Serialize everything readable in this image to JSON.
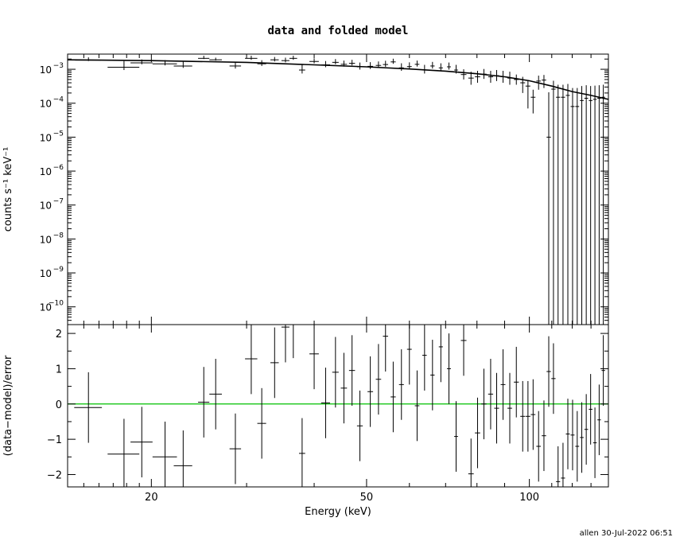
{
  "footer": "allen 30-Jul-2022 06:51",
  "chart_data": [
    {
      "type": "scatter",
      "title": "data and folded model",
      "xlabel": "",
      "ylabel": "counts s⁻¹ keV⁻¹",
      "xscale": "log",
      "yscale": "log",
      "xlim": [
        14,
        140
      ],
      "ylim": [
        3e-11,
        0.0028
      ],
      "yticks": [
        1e-10,
        1e-09,
        1e-08,
        1e-07,
        1e-06,
        1e-05,
        0.0001,
        0.001
      ],
      "ytick_labels": [
        {
          "base": "10",
          "exp": "−10"
        },
        {
          "base": "10",
          "exp": "−9"
        },
        {
          "base": "10",
          "exp": "−8"
        },
        {
          "base": "10",
          "exp": "−7"
        },
        {
          "base": "10",
          "exp": "−6"
        },
        {
          "base": "10",
          "exp": "−5"
        },
        {
          "base": "10",
          "exp": "−4"
        },
        {
          "base": "10",
          "exp": "−3"
        }
      ],
      "model": [
        [
          14,
          0.0019
        ],
        [
          20,
          0.0018
        ],
        [
          30,
          0.0016
        ],
        [
          40,
          0.00135
        ],
        [
          50,
          0.00118
        ],
        [
          60,
          0.00102
        ],
        [
          70,
          0.00088
        ],
        [
          80,
          0.00074
        ],
        [
          90,
          0.0006
        ],
        [
          100,
          0.00046
        ],
        [
          110,
          0.00032
        ],
        [
          120,
          0.00022
        ],
        [
          130,
          0.00017
        ],
        [
          140,
          0.00013
        ]
      ],
      "points": [
        [
          15.3,
          0.00185,
          0.85,
          0.0001,
          0.0004
        ],
        [
          17.8,
          0.00115,
          1.2,
          0.0002,
          0.0006
        ],
        [
          19.2,
          0.00155,
          0.9,
          0.00015,
          0.0004
        ],
        [
          21.2,
          0.00145,
          1.1,
          0.00015,
          0.0004
        ],
        [
          22.9,
          0.00125,
          0.9,
          0.00015,
          0.0005
        ],
        [
          25.0,
          0.0021,
          0.6,
          0.0001,
          0.0004
        ],
        [
          26.3,
          0.0019,
          0.7,
          0.0001,
          0.0003
        ],
        [
          28.6,
          0.00125,
          0.7,
          0.0002,
          0.0004
        ],
        [
          30.6,
          0.0021,
          0.8,
          0.0002,
          0.0004
        ],
        [
          32.0,
          0.00145,
          0.6,
          0.0002,
          0.0004
        ],
        [
          33.8,
          0.0019,
          0.6,
          0.0002,
          0.0004
        ],
        [
          35.4,
          0.0018,
          0.6,
          0.0002,
          0.0004
        ],
        [
          36.6,
          0.0021,
          0.6,
          0.0002,
          0.0004
        ],
        [
          38.0,
          0.00095,
          0.5,
          0.0002,
          0.0004
        ],
        [
          40.0,
          0.0017,
          0.8,
          0.0002,
          0.0004
        ],
        [
          42.0,
          0.00135,
          0.8,
          0.0002,
          0.0004
        ],
        [
          43.8,
          0.0016,
          0.6,
          0.0002,
          0.0004
        ],
        [
          45.4,
          0.0014,
          0.6,
          0.0002,
          0.0004
        ],
        [
          47.0,
          0.0015,
          0.6,
          0.0002,
          0.0004
        ],
        [
          48.6,
          0.00118,
          0.6,
          0.0002,
          0.0004
        ],
        [
          50.8,
          0.00122,
          0.6,
          0.0002,
          0.0004
        ],
        [
          52.6,
          0.0013,
          0.6,
          0.0002,
          0.0004
        ],
        [
          54.2,
          0.00138,
          0.6,
          0.0002,
          0.0004
        ],
        [
          56.0,
          0.00165,
          0.6,
          0.0002,
          0.0004
        ],
        [
          58.0,
          0.0011,
          0.6,
          0.0002,
          0.0004
        ],
        [
          60.0,
          0.0012,
          0.6,
          0.0002,
          0.0004
        ],
        [
          62.0,
          0.0014,
          0.6,
          0.0002,
          0.0004
        ],
        [
          64.0,
          0.00095,
          0.6,
          0.0002,
          0.0004
        ],
        [
          66.2,
          0.00125,
          0.6,
          0.0002,
          0.0004
        ],
        [
          68.6,
          0.0011,
          0.6,
          0.0002,
          0.0004
        ],
        [
          71.0,
          0.00118,
          0.6,
          0.0002,
          0.0004
        ],
        [
          73.2,
          0.00095,
          0.6,
          0.0002,
          0.0004
        ],
        [
          75.6,
          0.0007,
          0.9,
          0.0002,
          0.0003
        ],
        [
          78.0,
          0.00055,
          0.9,
          0.0002,
          0.0003
        ],
        [
          80.2,
          0.0006,
          0.9,
          0.0002,
          0.0003
        ],
        [
          82.4,
          0.00072,
          0.9,
          0.0002,
          0.0003
        ],
        [
          84.8,
          0.0006,
          0.9,
          0.0002,
          0.0003
        ],
        [
          87.0,
          0.00065,
          0.9,
          0.0002,
          0.0003
        ],
        [
          89.4,
          0.0006,
          0.9,
          0.0002,
          0.0003
        ],
        [
          92.0,
          0.00055,
          0.9,
          0.0002,
          0.0003
        ],
        [
          94.6,
          0.0005,
          1.0,
          0.00015,
          0.0002
        ],
        [
          97.2,
          0.0004,
          1.0,
          0.0002,
          0.0002
        ],
        [
          99.4,
          0.00032,
          1.0,
          0.00025,
          0.00015
        ],
        [
          101.6,
          0.00015,
          1.0,
          0.0001,
          0.0001
        ],
        [
          104.0,
          0.00045,
          1.0,
          0.0002,
          0.0002
        ],
        [
          106.4,
          0.00048,
          1.0,
          0.0002,
          0.0002
        ],
        [
          108.6,
          1e-05,
          1.0,
          1e-05,
          0.0002
        ],
        [
          110.8,
          0.00026,
          1.0,
          0.00026,
          0.0002
        ],
        [
          113.0,
          0.00015,
          1.0,
          0.00015,
          0.0002
        ],
        [
          115.4,
          0.00015,
          1.0,
          0.00015,
          0.0002
        ],
        [
          117.8,
          0.00017,
          1.0,
          0.00017,
          0.0002
        ],
        [
          120.2,
          8e-05,
          1.0,
          8e-05,
          0.0002
        ],
        [
          122.6,
          8e-05,
          1.0,
          8e-05,
          0.0002
        ],
        [
          125.0,
          0.00012,
          1.0,
          0.00012,
          0.0002
        ],
        [
          127.4,
          0.00014,
          1.0,
          0.00014,
          0.0002
        ],
        [
          129.8,
          0.00012,
          1.0,
          0.00012,
          0.0002
        ],
        [
          132.2,
          0.00013,
          1.0,
          0.00013,
          0.0002
        ],
        [
          134.6,
          0.00014,
          1.0,
          0.00014,
          0.0002
        ],
        [
          137.0,
          0.00015,
          1.0,
          0.00015,
          0.0002
        ]
      ]
    },
    {
      "type": "scatter",
      "title": "",
      "xlabel": "Energy (keV)",
      "ylabel": "(data−model)/error",
      "xscale": "log",
      "yscale": "linear",
      "xlim": [
        14,
        140
      ],
      "ylim": [
        -2.35,
        2.25
      ],
      "yticks": [
        -2,
        -1,
        0,
        1,
        2
      ],
      "ytick_labels": [
        "−2",
        "−1",
        "0",
        "1",
        "2"
      ],
      "xticks": [
        20,
        50,
        100
      ],
      "xtick_labels": [
        "20",
        "50",
        "100"
      ],
      "zero_line_color": "#00c000",
      "points": [
        [
          15.3,
          -0.1,
          0.9,
          1.0
        ],
        [
          17.8,
          -1.42,
          1.2,
          1.0
        ],
        [
          19.2,
          -1.08,
          0.9,
          1.0
        ],
        [
          21.2,
          -1.5,
          1.1,
          1.0
        ],
        [
          22.9,
          -1.75,
          0.9,
          1.0
        ],
        [
          25.0,
          0.05,
          0.6,
          1.0
        ],
        [
          26.3,
          0.28,
          0.7,
          1.0
        ],
        [
          28.6,
          -1.27,
          0.7,
          1.0
        ],
        [
          30.6,
          1.28,
          0.8,
          1.0
        ],
        [
          32.0,
          -0.55,
          0.6,
          1.0
        ],
        [
          33.8,
          1.17,
          0.6,
          1.0
        ],
        [
          35.4,
          2.18,
          0.6,
          1.0
        ],
        [
          36.6,
          2.3,
          0.6,
          1.0
        ],
        [
          38.0,
          -1.4,
          0.5,
          1.0
        ],
        [
          40.0,
          1.42,
          0.8,
          1.0
        ],
        [
          42.0,
          0.03,
          0.8,
          1.0
        ],
        [
          43.8,
          0.9,
          0.6,
          1.0
        ],
        [
          45.4,
          0.45,
          0.6,
          1.0
        ],
        [
          47.0,
          0.95,
          0.6,
          1.0
        ],
        [
          48.6,
          -0.62,
          0.6,
          1.0
        ],
        [
          50.8,
          0.35,
          0.6,
          1.0
        ],
        [
          52.6,
          0.7,
          0.6,
          1.0
        ],
        [
          54.2,
          1.92,
          0.6,
          1.0
        ],
        [
          56.0,
          0.2,
          0.6,
          1.0
        ],
        [
          58.0,
          0.55,
          0.6,
          1.0
        ],
        [
          60.0,
          1.55,
          0.6,
          1.0
        ],
        [
          62.0,
          -0.05,
          0.6,
          1.0
        ],
        [
          64.0,
          1.38,
          0.6,
          1.0
        ],
        [
          66.2,
          0.82,
          0.6,
          1.0
        ],
        [
          68.6,
          1.62,
          0.6,
          1.0
        ],
        [
          71.0,
          1.0,
          0.6,
          1.0
        ],
        [
          73.2,
          -0.92,
          0.6,
          1.0
        ],
        [
          75.6,
          1.8,
          0.9,
          1.0
        ],
        [
          78.0,
          -1.98,
          0.9,
          1.0
        ],
        [
          80.2,
          -0.82,
          0.9,
          1.0
        ],
        [
          82.4,
          0.0,
          0.9,
          1.0
        ],
        [
          84.8,
          0.28,
          0.9,
          1.0
        ],
        [
          87.0,
          -0.12,
          0.9,
          1.0
        ],
        [
          89.4,
          0.55,
          0.9,
          1.0
        ],
        [
          92.0,
          -0.12,
          0.9,
          1.0
        ],
        [
          94.6,
          0.62,
          1.0,
          1.0
        ],
        [
          97.2,
          -0.35,
          1.0,
          1.0
        ],
        [
          99.4,
          -0.35,
          1.0,
          1.0
        ],
        [
          101.6,
          -0.3,
          1.0,
          1.0
        ],
        [
          104.0,
          -1.2,
          1.0,
          1.0
        ],
        [
          106.4,
          -0.9,
          1.0,
          1.0
        ],
        [
          108.6,
          0.92,
          1.0,
          1.0
        ],
        [
          110.8,
          0.72,
          1.0,
          1.0
        ],
        [
          113.0,
          -2.2,
          1.0,
          1.0
        ],
        [
          115.4,
          -2.1,
          1.0,
          1.0
        ],
        [
          117.8,
          -0.85,
          1.0,
          1.0
        ],
        [
          120.2,
          -0.88,
          1.0,
          1.0
        ],
        [
          122.6,
          -1.2,
          1.0,
          1.0
        ],
        [
          125.0,
          -0.95,
          1.0,
          1.0
        ],
        [
          127.4,
          -0.72,
          1.0,
          1.0
        ],
        [
          129.8,
          -0.15,
          1.0,
          1.0
        ],
        [
          132.2,
          -1.1,
          1.0,
          1.0
        ],
        [
          134.6,
          -0.45,
          1.0,
          1.0
        ],
        [
          137.0,
          0.95,
          1.0,
          1.0
        ]
      ]
    }
  ]
}
